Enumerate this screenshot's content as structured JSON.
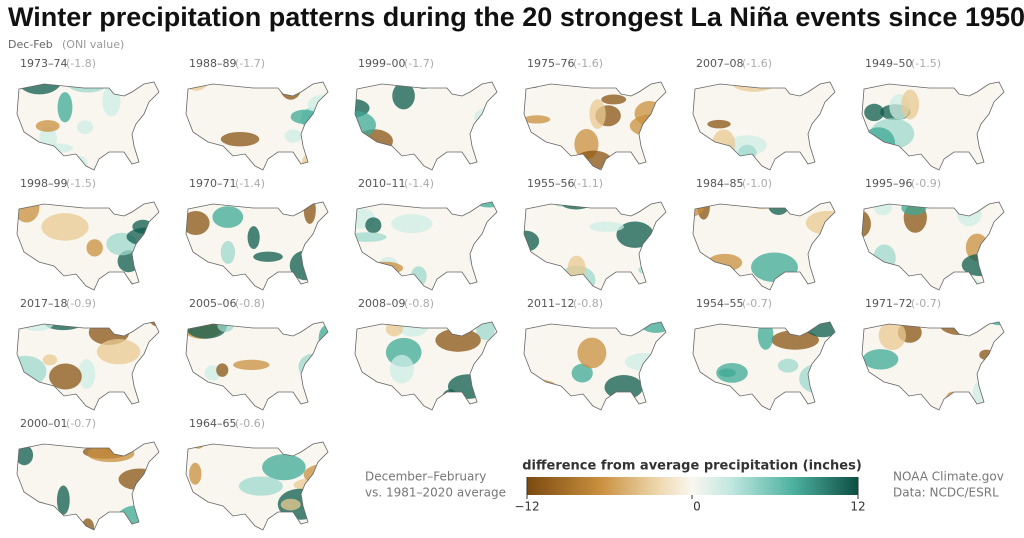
{
  "title": "Winter precipitation patterns during the 20 strongest La Niña events since 1950",
  "subtitle": {
    "label": "Dec-Feb",
    "note": "(ONI value)"
  },
  "panels": [
    {
      "years": "1973–74",
      "oni": "(-1.8)"
    },
    {
      "years": "1988–89",
      "oni": "(-1.7)"
    },
    {
      "years": "1999–00",
      "oni": "(-1.7)"
    },
    {
      "years": "1975–76",
      "oni": "(-1.6)"
    },
    {
      "years": "2007–08",
      "oni": "(-1.6)"
    },
    {
      "years": "1949–50",
      "oni": "(-1.5)"
    },
    {
      "years": "1998–99",
      "oni": "(-1.5)"
    },
    {
      "years": "1970–71",
      "oni": "(-1.4)"
    },
    {
      "years": "2010–11",
      "oni": "(-1.4)"
    },
    {
      "years": "1955–56",
      "oni": "(-1.1)"
    },
    {
      "years": "1984–85",
      "oni": "(-1.0)"
    },
    {
      "years": "1995–96",
      "oni": "(-0.9)"
    },
    {
      "years": "2017–18",
      "oni": "(-0.9)"
    },
    {
      "years": "2005–06",
      "oni": "(-0.8)"
    },
    {
      "years": "2008–09",
      "oni": "(-0.8)"
    },
    {
      "years": "2011–12",
      "oni": "(-0.8)"
    },
    {
      "years": "1954–55",
      "oni": "(-0.7)"
    },
    {
      "years": "1971–72",
      "oni": "(-0.7)"
    },
    {
      "years": "2000–01",
      "oni": "(-0.7)"
    },
    {
      "years": "1964–65",
      "oni": "(-0.6)"
    }
  ],
  "notes": {
    "period": "December–February",
    "baseline": "vs. 1981–2020 average"
  },
  "legend": {
    "title": "difference from average precipitation (inches)",
    "min": "−12",
    "mid": "0",
    "max": "12"
  },
  "credits": {
    "source": "NOAA Climate.gov",
    "data": "Data: NCDC/ESRL"
  }
}
